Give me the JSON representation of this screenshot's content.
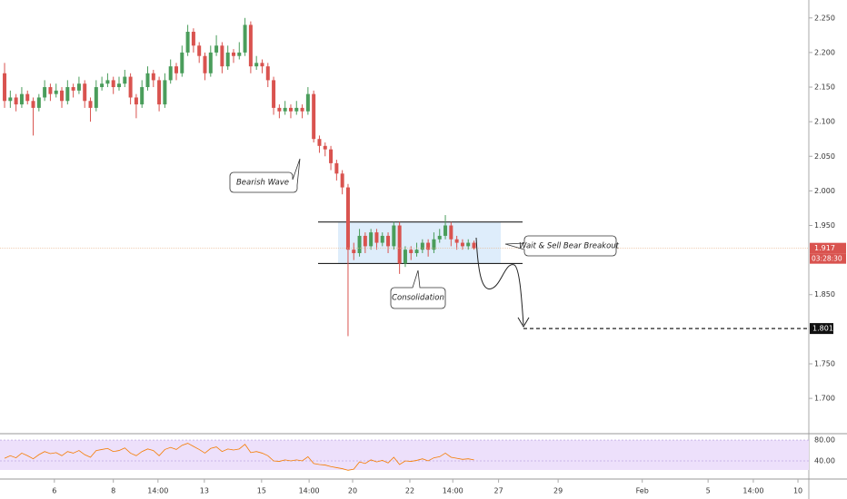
{
  "chart_data": [
    {
      "type": "candlestick",
      "open": [
        2.17,
        2.13,
        2.135,
        2.125,
        2.14,
        2.13,
        2.12,
        2.135,
        2.15,
        2.14,
        2.145,
        2.13,
        2.15,
        2.145,
        2.155,
        2.13,
        2.12,
        2.15,
        2.155,
        2.16,
        2.15,
        2.155,
        2.165,
        2.135,
        2.125,
        2.15,
        2.17,
        2.16,
        2.125,
        2.16,
        2.18,
        2.17,
        2.2,
        2.23,
        2.21,
        2.195,
        2.17,
        2.2,
        2.21,
        2.18,
        2.2,
        2.195,
        2.2,
        2.24,
        2.18,
        2.185,
        2.18,
        2.16,
        2.12,
        2.115,
        2.12,
        2.115,
        2.12,
        2.115,
        2.14,
        2.075,
        2.065,
        2.06,
        2.04,
        2.025,
        2.005,
        1.915,
        1.91,
        1.935,
        1.92,
        1.94,
        1.925,
        1.935,
        1.92,
        1.95,
        1.895,
        1.915,
        1.91,
        1.915,
        1.925,
        1.915,
        1.93,
        1.935,
        1.95,
        1.93,
        1.925,
        1.92,
        1.925
      ],
      "high": [
        2.185,
        2.145,
        2.14,
        2.15,
        2.145,
        2.135,
        2.14,
        2.16,
        2.155,
        2.155,
        2.15,
        2.16,
        2.155,
        2.165,
        2.16,
        2.135,
        2.16,
        2.165,
        2.17,
        2.165,
        2.165,
        2.175,
        2.17,
        2.14,
        2.16,
        2.18,
        2.175,
        2.165,
        2.17,
        2.19,
        2.185,
        2.21,
        2.24,
        2.235,
        2.215,
        2.2,
        2.21,
        2.225,
        2.215,
        2.21,
        2.205,
        2.215,
        2.25,
        2.245,
        2.195,
        2.19,
        2.185,
        2.165,
        2.125,
        2.13,
        2.125,
        2.13,
        2.125,
        2.15,
        2.145,
        2.08,
        2.07,
        2.065,
        2.045,
        2.03,
        2.01,
        1.925,
        1.945,
        1.94,
        1.945,
        1.945,
        1.94,
        1.94,
        1.955,
        1.955,
        1.92,
        1.92,
        1.925,
        1.93,
        1.93,
        1.94,
        1.945,
        1.965,
        1.955,
        1.935,
        1.93,
        1.93,
        1.928
      ],
      "low": [
        2.12,
        2.12,
        2.115,
        2.12,
        2.125,
        2.08,
        2.115,
        2.13,
        2.13,
        2.135,
        2.12,
        2.125,
        2.135,
        2.14,
        2.12,
        2.1,
        2.115,
        2.145,
        2.15,
        2.14,
        2.145,
        2.15,
        2.125,
        2.105,
        2.12,
        2.145,
        2.15,
        2.115,
        2.12,
        2.155,
        2.16,
        2.165,
        2.195,
        2.2,
        2.185,
        2.16,
        2.165,
        2.195,
        2.17,
        2.175,
        2.185,
        2.19,
        2.195,
        2.17,
        2.175,
        2.17,
        2.15,
        2.11,
        2.105,
        2.11,
        2.105,
        2.11,
        2.105,
        2.11,
        2.07,
        2.055,
        2.05,
        2.03,
        2.015,
        1.995,
        1.79,
        1.9,
        1.905,
        1.91,
        1.915,
        1.915,
        1.92,
        1.91,
        1.915,
        1.88,
        1.89,
        1.9,
        1.905,
        1.91,
        1.905,
        1.91,
        1.925,
        1.93,
        1.92,
        1.915,
        1.915,
        1.915,
        1.915
      ],
      "close": [
        2.13,
        2.135,
        2.125,
        2.14,
        2.13,
        2.12,
        2.135,
        2.15,
        2.14,
        2.145,
        2.13,
        2.15,
        2.145,
        2.155,
        2.13,
        2.12,
        2.15,
        2.155,
        2.16,
        2.15,
        2.155,
        2.165,
        2.135,
        2.125,
        2.15,
        2.17,
        2.16,
        2.125,
        2.16,
        2.18,
        2.17,
        2.2,
        2.23,
        2.21,
        2.195,
        2.17,
        2.2,
        2.21,
        2.18,
        2.2,
        2.195,
        2.2,
        2.24,
        2.18,
        2.185,
        2.18,
        2.16,
        2.12,
        2.115,
        2.12,
        2.115,
        2.12,
        2.115,
        2.14,
        2.075,
        2.065,
        2.06,
        2.04,
        2.025,
        2.005,
        1.915,
        1.91,
        1.935,
        1.92,
        1.94,
        1.925,
        1.935,
        1.92,
        1.95,
        1.895,
        1.915,
        1.91,
        1.915,
        1.925,
        1.915,
        1.93,
        1.935,
        1.95,
        1.93,
        1.925,
        1.92,
        1.925,
        1.917
      ],
      "up_color": "#4a9d5b",
      "down_color": "#d9534f",
      "xlim": [
        -0.8,
        140.5
      ],
      "xticks": [
        {
          "value": 8.7,
          "label": "6"
        },
        {
          "value": 19,
          "label": "8"
        },
        {
          "value": 26.8,
          "label": "14:00"
        },
        {
          "value": 34.9,
          "label": "13"
        },
        {
          "value": 44.9,
          "label": "15"
        },
        {
          "value": 53.2,
          "label": "14:00"
        },
        {
          "value": 60.8,
          "label": "20"
        },
        {
          "value": 70.8,
          "label": "22"
        },
        {
          "value": 78.3,
          "label": "14:00"
        },
        {
          "value": 86.3,
          "label": "27"
        },
        {
          "value": 96.7,
          "label": "29"
        },
        {
          "value": 111.4,
          "label": "Feb"
        },
        {
          "value": 122.9,
          "label": "5"
        },
        {
          "value": 130.8,
          "label": "14:00"
        },
        {
          "value": 138.6,
          "label": "10"
        }
      ],
      "ylim": [
        1.649,
        2.272
      ],
      "yticks": [
        {
          "value": 2.25,
          "label": "2.250"
        },
        {
          "value": 2.2,
          "label": "2.200"
        },
        {
          "value": 2.15,
          "label": "2.150"
        },
        {
          "value": 2.1,
          "label": "2.100"
        },
        {
          "value": 2.05,
          "label": "2.050"
        },
        {
          "value": 2,
          "label": "2.000"
        },
        {
          "value": 1.95,
          "label": "1.950"
        },
        {
          "value": 1.85,
          "label": "1.850"
        },
        {
          "value": 1.75,
          "label": "1.750"
        },
        {
          "value": 1.7,
          "label": "1.700"
        }
      ],
      "range_box": {
        "top": 1.955,
        "bottom": 1.895
      },
      "target": 1.801,
      "countdown": "03:28:30",
      "annotations": [
        "Bearish Wave",
        "Wait & Sell Bear Breakout",
        "Consolidation"
      ]
    },
    {
      "type": "line",
      "values": [
        45,
        50,
        46,
        55,
        50,
        44,
        52,
        58,
        54,
        56,
        50,
        58,
        55,
        60,
        52,
        47,
        60,
        62,
        64,
        58,
        60,
        65,
        55,
        50,
        58,
        63,
        60,
        50,
        62,
        66,
        62,
        70,
        74,
        68,
        62,
        55,
        64,
        67,
        58,
        63,
        61,
        63,
        72,
        56,
        58,
        55,
        50,
        40,
        39,
        42,
        40,
        42,
        40,
        48,
        35,
        33,
        32,
        29,
        27,
        25,
        22,
        24,
        38,
        35,
        42,
        38,
        41,
        36,
        47,
        33,
        40,
        39,
        41,
        44,
        40,
        46,
        48,
        55,
        47,
        45,
        43,
        44,
        42
      ],
      "color": "#f57c00",
      "ylim": [
        19,
        89
      ],
      "yticks": [
        {
          "value": 80,
          "label": "80.00"
        },
        {
          "value": 40,
          "label": "40.00"
        }
      ]
    }
  ]
}
